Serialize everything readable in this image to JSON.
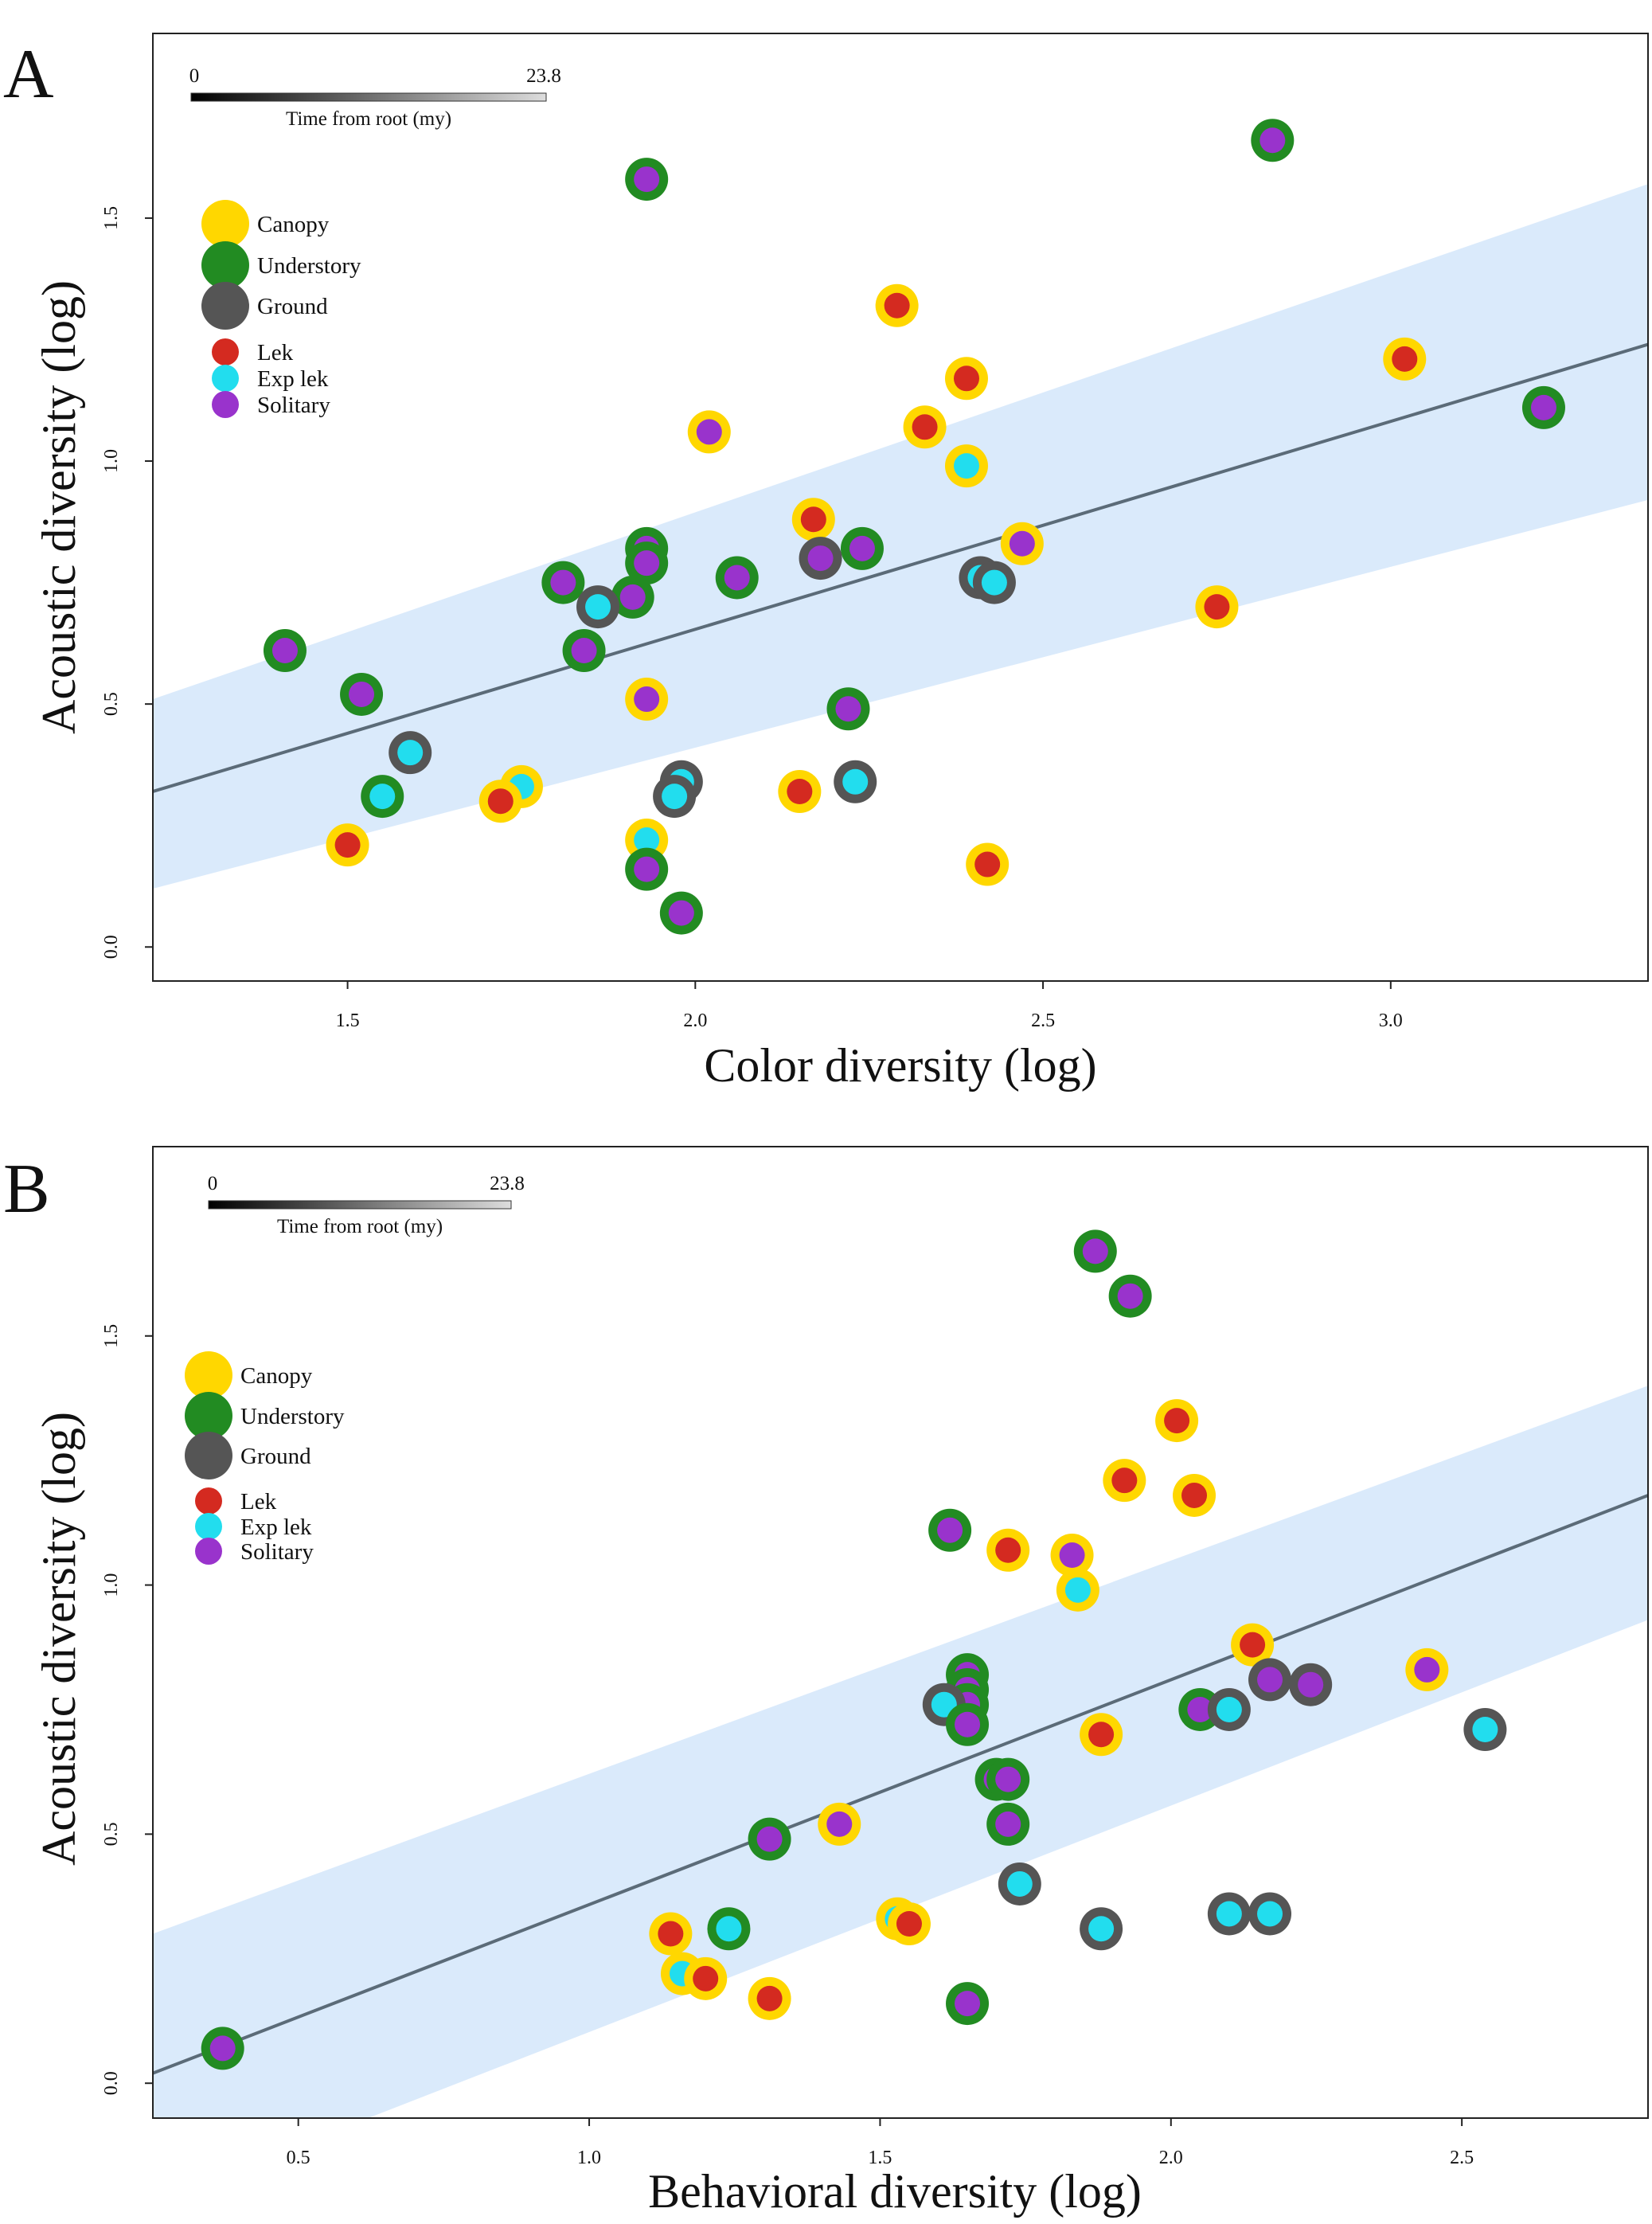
{
  "panels": [
    {
      "letter": "A",
      "xlabel": "Color diversity (log)",
      "ylabel": "Acoustic diversity (log)",
      "scalebar": {
        "start": "0",
        "end": "23.8",
        "label": "Time from root (my)"
      },
      "legend": {
        "strata": [
          {
            "name": "Canopy",
            "color": "#FFD700"
          },
          {
            "name": "Understory",
            "color": "#228B22"
          },
          {
            "name": "Ground",
            "color": "#555555"
          }
        ],
        "mating": [
          {
            "name": "Lek",
            "color": "#D42A20"
          },
          {
            "name": "Exp lek",
            "color": "#22DDEE"
          },
          {
            "name": "Solitary",
            "color": "#9933CC"
          }
        ]
      }
    },
    {
      "letter": "B",
      "xlabel": "Behavioral diversity (log)",
      "ylabel": "Acoustic diversity (log)",
      "scalebar": {
        "start": "0",
        "end": "23.8",
        "label": "Time from root (my)"
      },
      "legend": {
        "strata": [
          {
            "name": "Canopy",
            "color": "#FFD700"
          },
          {
            "name": "Understory",
            "color": "#228B22"
          },
          {
            "name": "Ground",
            "color": "#555555"
          }
        ],
        "mating": [
          {
            "name": "Lek",
            "color": "#D42A20"
          },
          {
            "name": "Exp lek",
            "color": "#22DDEE"
          },
          {
            "name": "Solitary",
            "color": "#9933CC"
          }
        ]
      }
    }
  ],
  "chart_data": [
    {
      "type": "scatter",
      "xlabel": "Color diversity (log)",
      "ylabel": "Acoustic diversity (log)",
      "xlim": [
        1.22,
        3.37
      ],
      "ylim": [
        -0.07,
        1.88
      ],
      "xticks": [
        1.5,
        2.0,
        2.5,
        3.0
      ],
      "yticks": [
        0.0,
        0.5,
        1.0,
        1.5
      ],
      "regression": {
        "x0": 1.22,
        "y0": 0.32,
        "x1": 3.37,
        "y1": 1.24
      },
      "confidence_band": {
        "lower": [
          [
            1.22,
            0.12
          ],
          [
            3.37,
            0.92
          ]
        ],
        "upper": [
          [
            1.22,
            0.51
          ],
          [
            3.37,
            1.57
          ]
        ]
      },
      "colors": {
        "Canopy": "#FFD700",
        "Understory": "#228B22",
        "Ground": "#555555",
        "Lek": "#D42A20",
        "Exp lek": "#22DDEE",
        "Solitary": "#9933CC"
      },
      "points": [
        {
          "x": 1.93,
          "y": 1.58,
          "stratum": "Understory",
          "mating": "Solitary"
        },
        {
          "x": 2.83,
          "y": 1.66,
          "stratum": "Understory",
          "mating": "Solitary"
        },
        {
          "x": 2.29,
          "y": 1.32,
          "stratum": "Canopy",
          "mating": "Lek"
        },
        {
          "x": 3.02,
          "y": 1.21,
          "stratum": "Canopy",
          "mating": "Lek"
        },
        {
          "x": 2.39,
          "y": 1.17,
          "stratum": "Canopy",
          "mating": "Lek"
        },
        {
          "x": 3.22,
          "y": 1.11,
          "stratum": "Understory",
          "mating": "Solitary"
        },
        {
          "x": 2.33,
          "y": 1.07,
          "stratum": "Canopy",
          "mating": "Lek"
        },
        {
          "x": 2.02,
          "y": 1.06,
          "stratum": "Canopy",
          "mating": "Solitary"
        },
        {
          "x": 2.39,
          "y": 0.99,
          "stratum": "Canopy",
          "mating": "Exp lek"
        },
        {
          "x": 2.17,
          "y": 0.88,
          "stratum": "Canopy",
          "mating": "Lek"
        },
        {
          "x": 2.47,
          "y": 0.83,
          "stratum": "Canopy",
          "mating": "Solitary"
        },
        {
          "x": 2.24,
          "y": 0.82,
          "stratum": "Understory",
          "mating": "Solitary"
        },
        {
          "x": 1.93,
          "y": 0.82,
          "stratum": "Understory",
          "mating": "Solitary"
        },
        {
          "x": 1.93,
          "y": 0.79,
          "stratum": "Understory",
          "mating": "Solitary"
        },
        {
          "x": 2.18,
          "y": 0.8,
          "stratum": "Ground",
          "mating": "Solitary"
        },
        {
          "x": 2.06,
          "y": 0.76,
          "stratum": "Understory",
          "mating": "Solitary"
        },
        {
          "x": 1.81,
          "y": 0.75,
          "stratum": "Understory",
          "mating": "Solitary"
        },
        {
          "x": 2.41,
          "y": 0.76,
          "stratum": "Ground",
          "mating": "Exp lek"
        },
        {
          "x": 2.43,
          "y": 0.75,
          "stratum": "Ground",
          "mating": "Exp lek"
        },
        {
          "x": 1.91,
          "y": 0.72,
          "stratum": "Understory",
          "mating": "Solitary"
        },
        {
          "x": 1.86,
          "y": 0.7,
          "stratum": "Ground",
          "mating": "Exp lek"
        },
        {
          "x": 2.75,
          "y": 0.7,
          "stratum": "Canopy",
          "mating": "Lek"
        },
        {
          "x": 1.41,
          "y": 0.61,
          "stratum": "Understory",
          "mating": "Solitary"
        },
        {
          "x": 1.84,
          "y": 0.61,
          "stratum": "Understory",
          "mating": "Solitary"
        },
        {
          "x": 1.52,
          "y": 0.52,
          "stratum": "Understory",
          "mating": "Solitary"
        },
        {
          "x": 1.93,
          "y": 0.51,
          "stratum": "Canopy",
          "mating": "Solitary"
        },
        {
          "x": 2.22,
          "y": 0.49,
          "stratum": "Understory",
          "mating": "Solitary"
        },
        {
          "x": 1.59,
          "y": 0.4,
          "stratum": "Ground",
          "mating": "Exp lek"
        },
        {
          "x": 1.98,
          "y": 0.34,
          "stratum": "Ground",
          "mating": "Exp lek"
        },
        {
          "x": 2.23,
          "y": 0.34,
          "stratum": "Ground",
          "mating": "Exp lek"
        },
        {
          "x": 1.75,
          "y": 0.33,
          "stratum": "Canopy",
          "mating": "Exp lek"
        },
        {
          "x": 2.15,
          "y": 0.32,
          "stratum": "Canopy",
          "mating": "Lek"
        },
        {
          "x": 1.97,
          "y": 0.31,
          "stratum": "Ground",
          "mating": "Exp lek"
        },
        {
          "x": 1.55,
          "y": 0.31,
          "stratum": "Understory",
          "mating": "Exp lek"
        },
        {
          "x": 1.72,
          "y": 0.3,
          "stratum": "Canopy",
          "mating": "Lek"
        },
        {
          "x": 1.93,
          "y": 0.22,
          "stratum": "Canopy",
          "mating": "Exp lek"
        },
        {
          "x": 1.5,
          "y": 0.21,
          "stratum": "Canopy",
          "mating": "Lek"
        },
        {
          "x": 2.42,
          "y": 0.17,
          "stratum": "Canopy",
          "mating": "Lek"
        },
        {
          "x": 1.93,
          "y": 0.16,
          "stratum": "Understory",
          "mating": "Solitary"
        },
        {
          "x": 1.98,
          "y": 0.07,
          "stratum": "Understory",
          "mating": "Solitary"
        }
      ]
    },
    {
      "type": "scatter",
      "xlabel": "Behavioral diversity (log)",
      "ylabel": "Acoustic diversity (log)",
      "xlim": [
        0.25,
        2.82
      ],
      "ylim": [
        -0.07,
        1.88
      ],
      "xticks": [
        0.5,
        1.0,
        1.5,
        2.0,
        2.5
      ],
      "yticks": [
        0.0,
        0.5,
        1.0,
        1.5
      ],
      "regression": {
        "x0": 0.25,
        "y0": 0.02,
        "x1": 2.82,
        "y1": 1.18
      },
      "confidence_band": {
        "lower": [
          [
            0.62,
            -0.07
          ],
          [
            2.82,
            0.93
          ]
        ],
        "upper": [
          [
            0.25,
            0.3
          ],
          [
            2.82,
            1.4
          ]
        ]
      },
      "colors": {
        "Canopy": "#FFD700",
        "Understory": "#228B22",
        "Ground": "#555555",
        "Lek": "#D42A20",
        "Exp lek": "#22DDEE",
        "Solitary": "#9933CC"
      },
      "points": [
        {
          "x": 1.87,
          "y": 1.67,
          "stratum": "Understory",
          "mating": "Solitary"
        },
        {
          "x": 1.93,
          "y": 1.58,
          "stratum": "Understory",
          "mating": "Solitary"
        },
        {
          "x": 2.01,
          "y": 1.33,
          "stratum": "Canopy",
          "mating": "Lek"
        },
        {
          "x": 1.92,
          "y": 1.21,
          "stratum": "Canopy",
          "mating": "Lek"
        },
        {
          "x": 2.04,
          "y": 1.18,
          "stratum": "Canopy",
          "mating": "Lek"
        },
        {
          "x": 1.62,
          "y": 1.11,
          "stratum": "Understory",
          "mating": "Solitary"
        },
        {
          "x": 1.72,
          "y": 1.07,
          "stratum": "Canopy",
          "mating": "Lek"
        },
        {
          "x": 1.83,
          "y": 1.06,
          "stratum": "Canopy",
          "mating": "Solitary"
        },
        {
          "x": 1.84,
          "y": 0.99,
          "stratum": "Canopy",
          "mating": "Exp lek"
        },
        {
          "x": 2.14,
          "y": 0.88,
          "stratum": "Canopy",
          "mating": "Lek"
        },
        {
          "x": 2.44,
          "y": 0.83,
          "stratum": "Canopy",
          "mating": "Solitary"
        },
        {
          "x": 1.65,
          "y": 0.82,
          "stratum": "Understory",
          "mating": "Solitary"
        },
        {
          "x": 2.17,
          "y": 0.81,
          "stratum": "Ground",
          "mating": "Solitary"
        },
        {
          "x": 1.65,
          "y": 0.79,
          "stratum": "Understory",
          "mating": "Solitary"
        },
        {
          "x": 2.24,
          "y": 0.8,
          "stratum": "Ground",
          "mating": "Solitary"
        },
        {
          "x": 1.65,
          "y": 0.76,
          "stratum": "Understory",
          "mating": "Solitary"
        },
        {
          "x": 1.61,
          "y": 0.76,
          "stratum": "Ground",
          "mating": "Exp lek"
        },
        {
          "x": 2.05,
          "y": 0.75,
          "stratum": "Understory",
          "mating": "Solitary"
        },
        {
          "x": 2.1,
          "y": 0.75,
          "stratum": "Ground",
          "mating": "Exp lek"
        },
        {
          "x": 1.65,
          "y": 0.72,
          "stratum": "Understory",
          "mating": "Solitary"
        },
        {
          "x": 1.88,
          "y": 0.7,
          "stratum": "Canopy",
          "mating": "Lek"
        },
        {
          "x": 2.54,
          "y": 0.71,
          "stratum": "Ground",
          "mating": "Exp lek"
        },
        {
          "x": 1.7,
          "y": 0.61,
          "stratum": "Understory",
          "mating": "Solitary"
        },
        {
          "x": 1.72,
          "y": 0.61,
          "stratum": "Understory",
          "mating": "Solitary"
        },
        {
          "x": 1.72,
          "y": 0.52,
          "stratum": "Understory",
          "mating": "Solitary"
        },
        {
          "x": 1.43,
          "y": 0.52,
          "stratum": "Canopy",
          "mating": "Solitary"
        },
        {
          "x": 1.31,
          "y": 0.49,
          "stratum": "Understory",
          "mating": "Solitary"
        },
        {
          "x": 1.74,
          "y": 0.4,
          "stratum": "Ground",
          "mating": "Exp lek"
        },
        {
          "x": 2.1,
          "y": 0.34,
          "stratum": "Ground",
          "mating": "Exp lek"
        },
        {
          "x": 2.17,
          "y": 0.34,
          "stratum": "Ground",
          "mating": "Exp lek"
        },
        {
          "x": 1.53,
          "y": 0.33,
          "stratum": "Canopy",
          "mating": "Exp lek"
        },
        {
          "x": 1.55,
          "y": 0.32,
          "stratum": "Canopy",
          "mating": "Lek"
        },
        {
          "x": 1.88,
          "y": 0.31,
          "stratum": "Ground",
          "mating": "Exp lek"
        },
        {
          "x": 1.24,
          "y": 0.31,
          "stratum": "Understory",
          "mating": "Exp lek"
        },
        {
          "x": 1.14,
          "y": 0.3,
          "stratum": "Canopy",
          "mating": "Lek"
        },
        {
          "x": 1.16,
          "y": 0.22,
          "stratum": "Canopy",
          "mating": "Exp lek"
        },
        {
          "x": 1.2,
          "y": 0.21,
          "stratum": "Canopy",
          "mating": "Lek"
        },
        {
          "x": 1.31,
          "y": 0.17,
          "stratum": "Canopy",
          "mating": "Lek"
        },
        {
          "x": 1.65,
          "y": 0.16,
          "stratum": "Understory",
          "mating": "Solitary"
        },
        {
          "x": 0.37,
          "y": 0.07,
          "stratum": "Understory",
          "mating": "Solitary"
        }
      ]
    }
  ]
}
